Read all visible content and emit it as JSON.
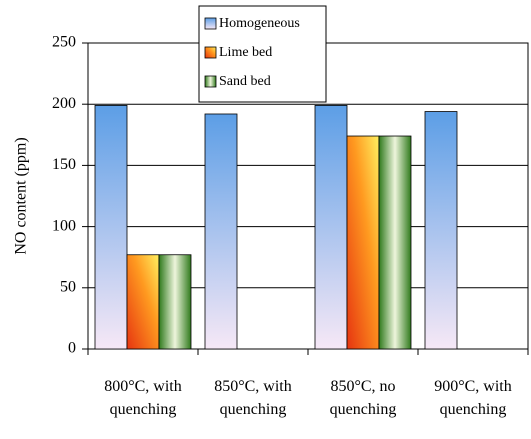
{
  "chart_data": {
    "type": "bar",
    "y_label": "NO content (ppm)",
    "categories": [
      "800°C, with\nquenching",
      "850°C, with\nquenching",
      "850°C, no\nquenching",
      "900°C, with\nquenching"
    ],
    "series": [
      {
        "name": "Homogeneous",
        "color": "#5c9ee6",
        "values": [
          199,
          192,
          199,
          194
        ]
      },
      {
        "name": "Lime bed",
        "color": "#e63410",
        "values": [
          77,
          null,
          174,
          null
        ]
      },
      {
        "name": "Sand bed",
        "color": "#2f7a1c",
        "values": [
          77,
          null,
          174,
          null
        ]
      }
    ],
    "ylim": [
      0,
      250
    ],
    "yticks": [
      0,
      50,
      100,
      150,
      200,
      250
    ],
    "grid": true
  }
}
